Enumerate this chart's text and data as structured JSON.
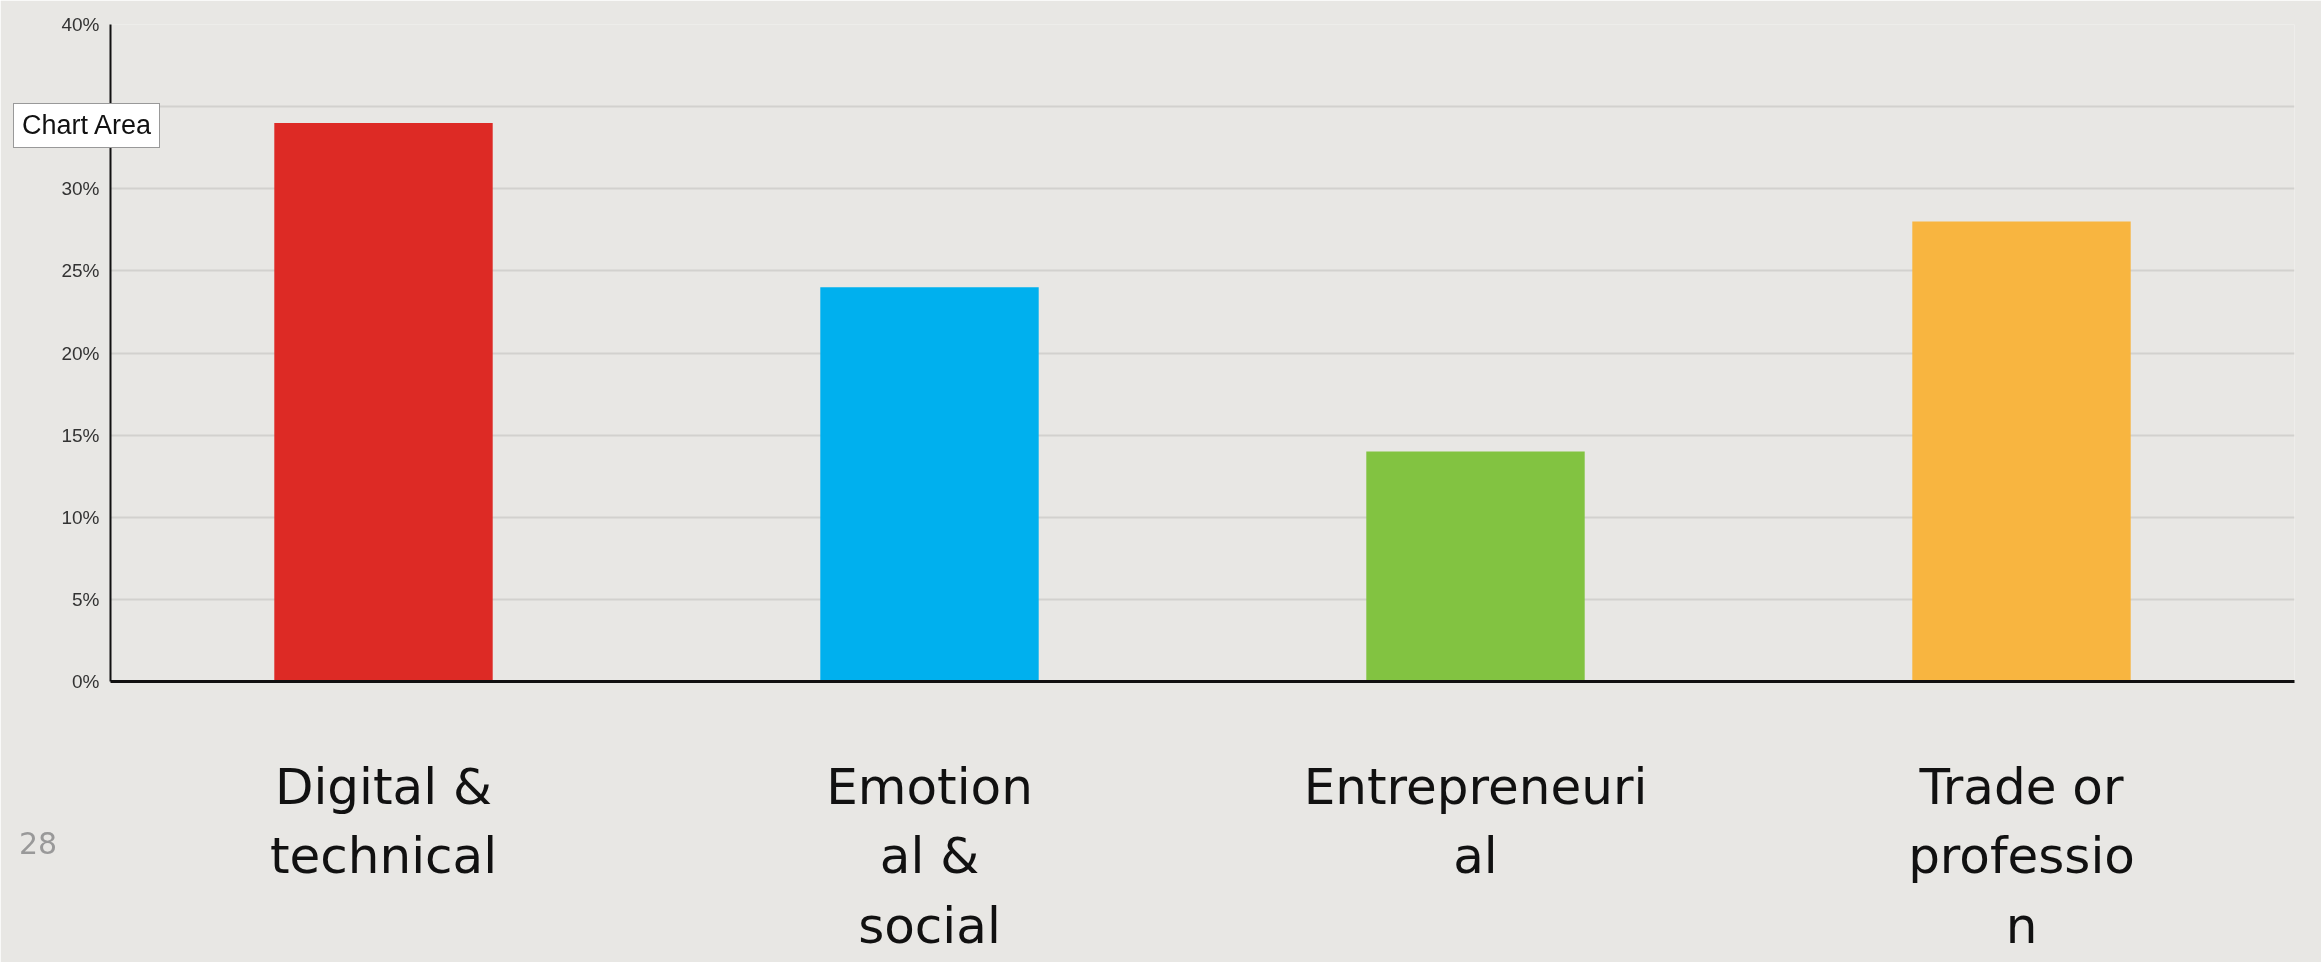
{
  "chart_data": {
    "type": "bar",
    "categories": [
      "Digital &\ntechnical",
      "Emotion\nal &\nsocial",
      "Entrepreneuri\nal",
      "Trade or\nprofessio\nn"
    ],
    "values": [
      34,
      24,
      14,
      28
    ],
    "colors": [
      "#dd2a25",
      "#00b0ee",
      "#82c341",
      "#f8b540"
    ],
    "ylim": [
      0,
      40
    ],
    "yticks": [
      {
        "value": 0,
        "label": "0%"
      },
      {
        "value": 5,
        "label": "5%"
      },
      {
        "value": 10,
        "label": "10%"
      },
      {
        "value": 15,
        "label": "15%"
      },
      {
        "value": 20,
        "label": "20%"
      },
      {
        "value": 25,
        "label": "25%"
      },
      {
        "value": 30,
        "label": "30%"
      },
      {
        "value": 35,
        "label": null
      },
      {
        "value": 40,
        "label": "40%"
      }
    ],
    "grid": "y",
    "annotations": [
      "Chart Area",
      "28"
    ]
  }
}
